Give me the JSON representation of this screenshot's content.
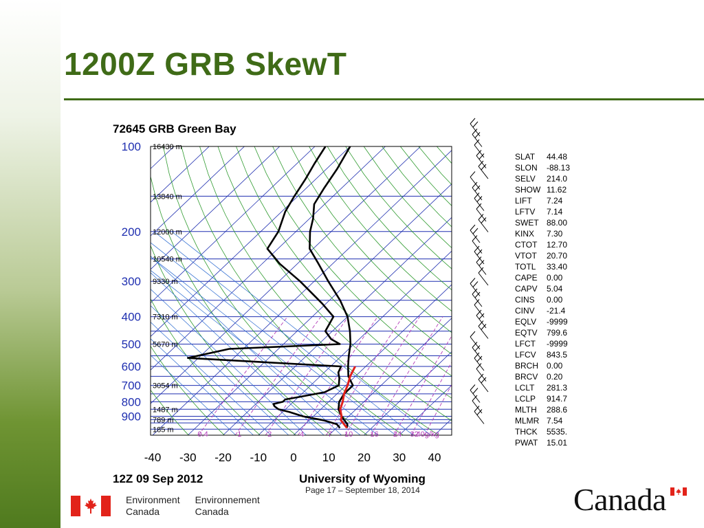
{
  "slide": {
    "title": "1200Z GRB SkewT",
    "footer": "Page 17 – September 18, 2014",
    "dept_en_1": "Environment",
    "dept_en_2": "Canada",
    "dept_fr_1": "Environnement",
    "dept_fr_2": "Canada",
    "wordmark": "Canada",
    "colors": {
      "title_green": "#3f6b17",
      "flag_red": "#e2231a"
    }
  },
  "chart_data": {
    "type": "line",
    "title": "72645 GRB Green Bay",
    "subtitle_left": "12Z 09 Sep 2012",
    "subtitle_right": "University of Wyoming",
    "x_ticks": [
      "-40",
      "-30",
      "-20",
      "-10",
      "0",
      "10",
      "20",
      "30",
      "40"
    ],
    "xlim": [
      -40,
      40
    ],
    "y_scale": "log",
    "ylim": [
      1050,
      100
    ],
    "p_labels": [
      "100",
      "200",
      "300",
      "400",
      "500",
      "600",
      "700",
      "800",
      "900"
    ],
    "height_labels": [
      "16430 m",
      "13840 m",
      "12000 m",
      "10540 m",
      "9330 m",
      "7310 m",
      "5670 m",
      "3054 m",
      "1487 m",
      "789 m",
      "185 m"
    ],
    "mixing_ratio_labels": [
      "0.4",
      "1",
      "2",
      "4",
      "7",
      "10",
      "16",
      "24",
      "32",
      "40g/kg"
    ],
    "series": [
      {
        "name": "Temperature",
        "color": "#000000",
        "points": [
          [
            990,
            13
          ],
          [
            960,
            12
          ],
          [
            930,
            10
          ],
          [
            900,
            8
          ],
          [
            850,
            5
          ],
          [
            800,
            3
          ],
          [
            750,
            2
          ],
          [
            700,
            2
          ],
          [
            650,
            -2
          ],
          [
            600,
            -5
          ],
          [
            550,
            -8
          ],
          [
            500,
            -11
          ],
          [
            450,
            -15
          ],
          [
            400,
            -20
          ],
          [
            350,
            -27
          ],
          [
            300,
            -36
          ],
          [
            260,
            -44
          ],
          [
            230,
            -51
          ],
          [
            200,
            -56
          ],
          [
            180,
            -59
          ],
          [
            160,
            -63
          ],
          [
            140,
            -65
          ],
          [
            120,
            -67
          ],
          [
            100,
            -70
          ]
        ]
      },
      {
        "name": "Dew point",
        "color": "#000000",
        "points": [
          [
            990,
            11
          ],
          [
            960,
            9
          ],
          [
            930,
            4
          ],
          [
            900,
            -3
          ],
          [
            870,
            -8
          ],
          [
            850,
            -12
          ],
          [
            830,
            -14
          ],
          [
            815,
            -15
          ],
          [
            800,
            -13
          ],
          [
            785,
            -13
          ],
          [
            770,
            -10
          ],
          [
            740,
            -4
          ],
          [
            700,
            -2
          ],
          [
            660,
            -4
          ],
          [
            630,
            -6
          ],
          [
            600,
            -7
          ],
          [
            560,
            -53
          ],
          [
            520,
            -44
          ],
          [
            500,
            -14
          ],
          [
            480,
            -18
          ],
          [
            450,
            -22
          ],
          [
            400,
            -24
          ],
          [
            360,
            -31
          ],
          [
            300,
            -44
          ],
          [
            260,
            -55
          ],
          [
            230,
            -63
          ],
          [
            200,
            -65
          ],
          [
            170,
            -69
          ],
          [
            150,
            -71
          ],
          [
            130,
            -73
          ],
          [
            115,
            -75
          ],
          [
            100,
            -77
          ]
        ]
      },
      {
        "name": "Parcel",
        "color": "#e0201b",
        "points": [
          [
            990,
            13
          ],
          [
            930,
            9
          ],
          [
            900,
            8
          ],
          [
            850,
            5.5
          ],
          [
            800,
            4
          ],
          [
            750,
            2
          ],
          [
            700,
            0.5
          ],
          [
            650,
            -1.5
          ],
          [
            600,
            -3
          ]
        ]
      }
    ],
    "indices": [
      {
        "k": "SLAT",
        "v": "44.48"
      },
      {
        "k": "SLON",
        "v": "-88.13"
      },
      {
        "k": "SELV",
        "v": "214.0"
      },
      {
        "k": "SHOW",
        "v": "11.62"
      },
      {
        "k": "LIFT",
        "v": "7.24"
      },
      {
        "k": "LFTV",
        "v": "7.14"
      },
      {
        "k": "SWET",
        "v": "88.00"
      },
      {
        "k": "KINX",
        "v": "7.30"
      },
      {
        "k": "CTOT",
        "v": "12.70"
      },
      {
        "k": "VTOT",
        "v": "20.70"
      },
      {
        "k": "TOTL",
        "v": "33.40"
      },
      {
        "k": "CAPE",
        "v": "0.00"
      },
      {
        "k": "CAPV",
        "v": "5.04"
      },
      {
        "k": "CINS",
        "v": "0.00"
      },
      {
        "k": "CINV",
        "v": "-21.4"
      },
      {
        "k": "EQLV",
        "v": "-9999"
      },
      {
        "k": "EQTV",
        "v": "799.6"
      },
      {
        "k": "LFCT",
        "v": "-9999"
      },
      {
        "k": "LFCV",
        "v": "843.5"
      },
      {
        "k": "BRCH",
        "v": "0.00"
      },
      {
        "k": "BRCV",
        "v": "0.20"
      },
      {
        "k": "LCLT",
        "v": "281.3"
      },
      {
        "k": "LCLP",
        "v": "914.7"
      },
      {
        "k": "MLTH",
        "v": "288.6"
      },
      {
        "k": "MLMR",
        "v": "7.54"
      },
      {
        "k": "THCK",
        "v": "5535."
      },
      {
        "k": "PWAT",
        "v": "15.01"
      }
    ],
    "wind_barbs_note": "",
    "grid": true
  }
}
